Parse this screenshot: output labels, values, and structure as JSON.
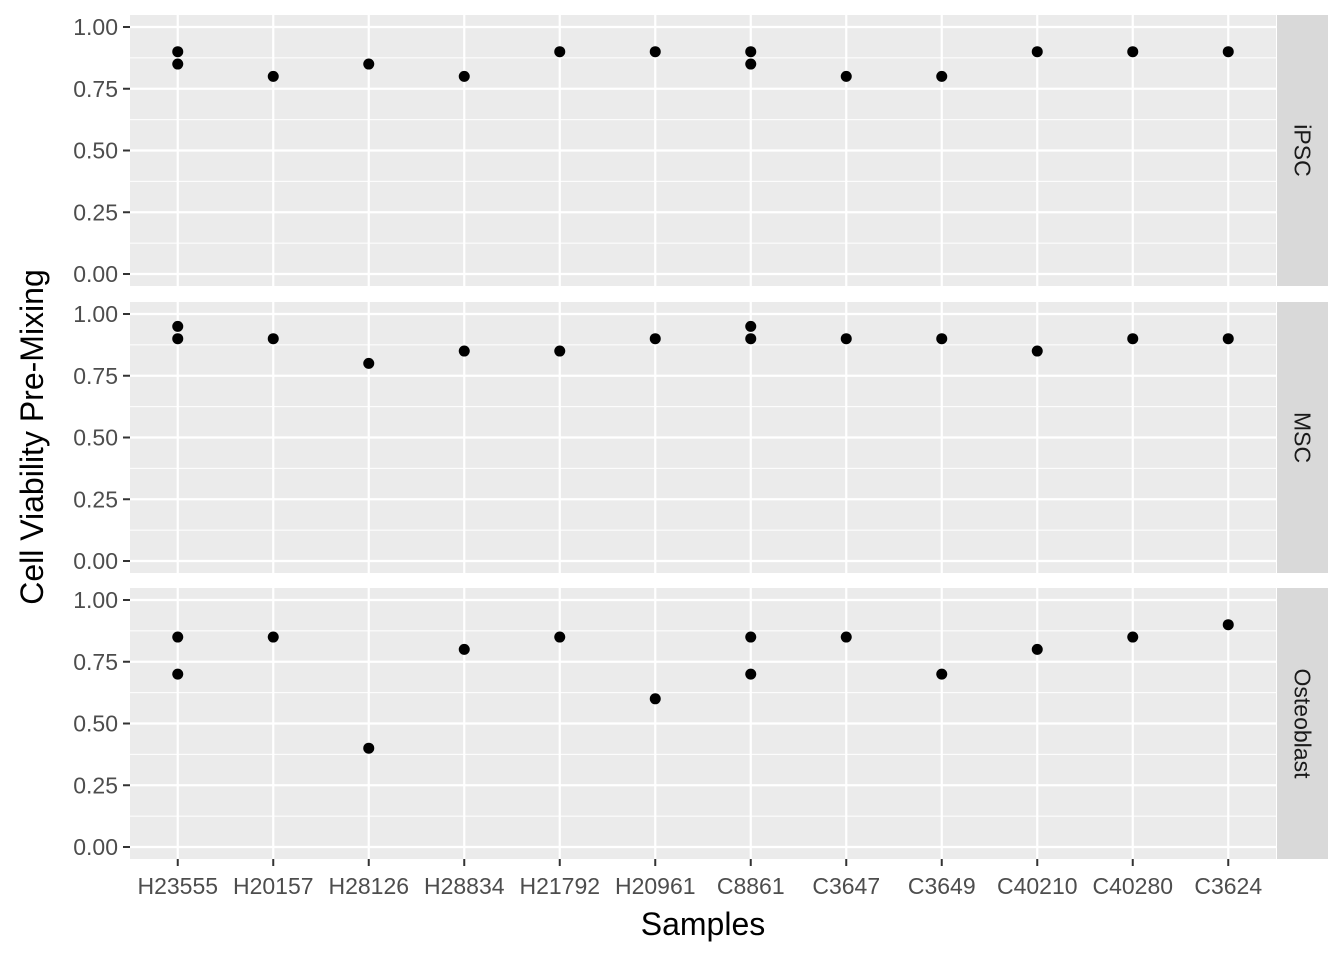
{
  "chart_data": {
    "type": "scatter",
    "facet": "rows",
    "xlabel": "Samples",
    "ylabel": "Cell Viability Pre-Mixing",
    "categories": [
      "H23555",
      "H20157",
      "H28126",
      "H28834",
      "H21792",
      "H20961",
      "C8861",
      "C3647",
      "C3649",
      "C40210",
      "C40280",
      "C3624"
    ],
    "ylim": [
      0,
      1
    ],
    "yticks": [
      "0.00",
      "0.25",
      "0.50",
      "0.75",
      "1.00"
    ],
    "grid": true,
    "point_color": "#000000",
    "panel_background": "#ebebeb",
    "strip_background": "#d9d9d9",
    "panels": [
      {
        "strip": "iPSC",
        "points": [
          {
            "x": "H23555",
            "y": 0.9
          },
          {
            "x": "H23555",
            "y": 0.85
          },
          {
            "x": "H20157",
            "y": 0.8
          },
          {
            "x": "H28126",
            "y": 0.85
          },
          {
            "x": "H28834",
            "y": 0.8
          },
          {
            "x": "H21792",
            "y": 0.9
          },
          {
            "x": "H20961",
            "y": 0.9
          },
          {
            "x": "C8861",
            "y": 0.9
          },
          {
            "x": "C8861",
            "y": 0.85
          },
          {
            "x": "C3647",
            "y": 0.8
          },
          {
            "x": "C3649",
            "y": 0.8
          },
          {
            "x": "C40210",
            "y": 0.9
          },
          {
            "x": "C40280",
            "y": 0.9
          },
          {
            "x": "C3624",
            "y": 0.9
          }
        ]
      },
      {
        "strip": "MSC",
        "points": [
          {
            "x": "H23555",
            "y": 0.95
          },
          {
            "x": "H23555",
            "y": 0.9
          },
          {
            "x": "H20157",
            "y": 0.9
          },
          {
            "x": "H28126",
            "y": 0.8
          },
          {
            "x": "H28834",
            "y": 0.85
          },
          {
            "x": "H21792",
            "y": 0.85
          },
          {
            "x": "H20961",
            "y": 0.9
          },
          {
            "x": "C8861",
            "y": 0.95
          },
          {
            "x": "C8861",
            "y": 0.9
          },
          {
            "x": "C3647",
            "y": 0.9
          },
          {
            "x": "C3649",
            "y": 0.9
          },
          {
            "x": "C40210",
            "y": 0.85
          },
          {
            "x": "C40280",
            "y": 0.9
          },
          {
            "x": "C3624",
            "y": 0.9
          }
        ]
      },
      {
        "strip": "Osteoblast",
        "points": [
          {
            "x": "H23555",
            "y": 0.85
          },
          {
            "x": "H23555",
            "y": 0.7
          },
          {
            "x": "H20157",
            "y": 0.85
          },
          {
            "x": "H28126",
            "y": 0.4
          },
          {
            "x": "H28834",
            "y": 0.8
          },
          {
            "x": "H21792",
            "y": 0.85
          },
          {
            "x": "H20961",
            "y": 0.6
          },
          {
            "x": "C8861",
            "y": 0.85
          },
          {
            "x": "C8861",
            "y": 0.7
          },
          {
            "x": "C3647",
            "y": 0.85
          },
          {
            "x": "C3649",
            "y": 0.7
          },
          {
            "x": "C40210",
            "y": 0.8
          },
          {
            "x": "C40280",
            "y": 0.85
          },
          {
            "x": "C3624",
            "y": 0.9
          }
        ]
      }
    ]
  }
}
